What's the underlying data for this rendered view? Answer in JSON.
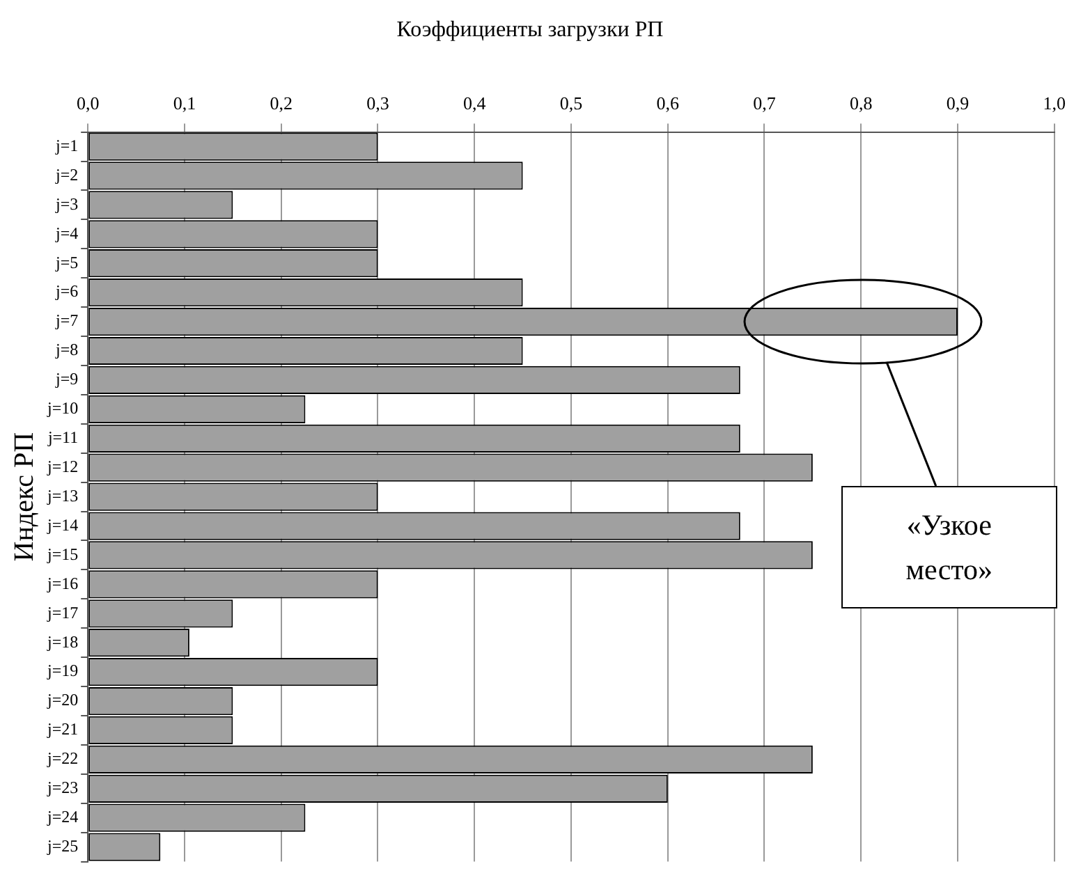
{
  "chart_data": {
    "type": "bar",
    "orientation": "horizontal",
    "title": "Коэффициенты загрузки РП",
    "ylabel": "Индекс РП",
    "categories": [
      "j=1",
      "j=2",
      "j=3",
      "j=4",
      "j=5",
      "j=6",
      "j=7",
      "j=8",
      "j=9",
      "j=10",
      "j=11",
      "j=12",
      "j=13",
      "j=14",
      "j=15",
      "j=16",
      "j=17",
      "j=18",
      "j=19",
      "j=20",
      "j=21",
      "j=22",
      "j=23",
      "j=24",
      "j=25"
    ],
    "values": [
      0.3,
      0.45,
      0.15,
      0.3,
      0.3,
      0.45,
      0.9,
      0.45,
      0.675,
      0.225,
      0.675,
      0.75,
      0.3,
      0.675,
      0.75,
      0.3,
      0.15,
      0.105,
      0.3,
      0.15,
      0.15,
      0.75,
      0.6,
      0.225,
      0.075
    ],
    "color": "#a0a0a0",
    "xlim": [
      0,
      1
    ],
    "xticks": [
      {
        "value": 0,
        "label": "0,0"
      },
      {
        "value": 0.1,
        "label": "0,1"
      },
      {
        "value": 0.2,
        "label": "0,2"
      },
      {
        "value": 0.3,
        "label": "0,3"
      },
      {
        "value": 0.4,
        "label": "0,4"
      },
      {
        "value": 0.5,
        "label": "0,5"
      },
      {
        "value": 0.6,
        "label": "0,6"
      },
      {
        "value": 0.7,
        "label": "0,7"
      },
      {
        "value": 0.8,
        "label": "0,8"
      },
      {
        "value": 0.9,
        "label": "0,9"
      },
      {
        "value": 1,
        "label": "1,0"
      }
    ],
    "grid": "x",
    "annotations": [
      "«Узкое место»"
    ]
  }
}
